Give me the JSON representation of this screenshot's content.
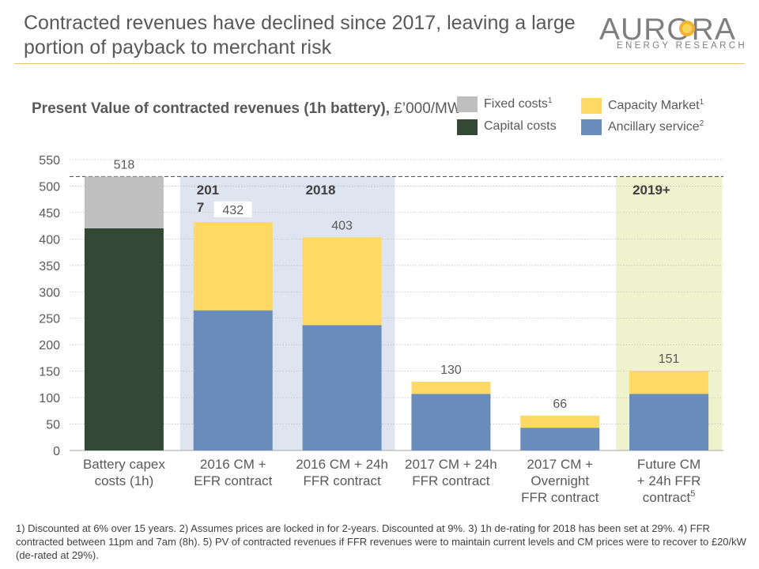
{
  "header": {
    "title": "Contracted revenues have declined since 2017, leaving a large portion of payback to merchant risk",
    "logo_main": "AURORA",
    "logo_sub": "ENERGY RESEARCH"
  },
  "chart_title": {
    "bold": "Present Value of contracted revenues (1h battery),",
    "normal": " £’000/MW"
  },
  "legend": [
    {
      "label": "Fixed costs",
      "sup": "1",
      "color": "#BFBFBF"
    },
    {
      "label": "Capital costs",
      "sup": "",
      "color": "#344935"
    },
    {
      "label": "Capacity Market",
      "sup": "1",
      "color": "#FFD966"
    },
    {
      "label": "Ancillary service",
      "sup": "2",
      "color": "#6A8CBB"
    }
  ],
  "colors": {
    "capital": "#344935",
    "fixed": "#BFBFBF",
    "cm": "#FFD966",
    "ancillary": "#6A8CBB",
    "band2017_2018": "#DEE5F0",
    "band2019": "#EEF3CE",
    "grid": "#BFBFBF",
    "text": "#595959"
  },
  "chart_data": {
    "type": "bar",
    "stacked": true,
    "ylim": [
      0,
      550
    ],
    "yticks": [
      0,
      50,
      100,
      150,
      200,
      250,
      300,
      350,
      400,
      450,
      500,
      550
    ],
    "grid": true,
    "categories": [
      [
        "Battery capex",
        "costs (1h)"
      ],
      [
        "2016 CM +",
        "EFR contract"
      ],
      [
        "2016 CM + 24h",
        "FFR contract"
      ],
      [
        "2017 CM + 24h",
        "FFR contract"
      ],
      [
        "2017 CM +",
        "Overnight",
        "FFR contract"
      ],
      [
        "Future CM",
        "+ 24h FFR",
        "contract"
      ]
    ],
    "category_sup": [
      "",
      "",
      "",
      "",
      "",
      "5"
    ],
    "series": [
      {
        "name": "Capital costs",
        "color_key": "capital",
        "values": [
          420,
          0,
          0,
          0,
          0,
          0
        ]
      },
      {
        "name": "Fixed costs",
        "color_key": "fixed",
        "values": [
          98,
          0,
          0,
          0,
          0,
          0
        ]
      },
      {
        "name": "Ancillary service",
        "color_key": "ancillary",
        "values": [
          0,
          265,
          237,
          107,
          43,
          107
        ]
      },
      {
        "name": "Capacity Market",
        "color_key": "cm",
        "values": [
          0,
          167,
          166,
          23,
          23,
          44
        ]
      }
    ],
    "totals": [
      518,
      432,
      403,
      130,
      66,
      151
    ],
    "reference_line": 518,
    "bands": [
      {
        "label": "201\n7",
        "from_index": 1,
        "to_index": 1,
        "color_key": "band2017_2018"
      },
      {
        "label": "2018",
        "from_index": 2,
        "to_index": 2,
        "color_key": "band2017_2018"
      },
      {
        "label": "2019+",
        "from_index": 5,
        "to_index": 5,
        "color_key": "band2019"
      }
    ]
  },
  "footnote": "1) Discounted at 6% over 15 years.  2) Assumes prices are locked in for 2-years. Discounted at 9%.  3) 1h de-rating for 2018 has been set at 29%.  4) FFR contracted between 11pm and 7am (8h).  5) PV of contracted revenues if FFR revenues were to maintain current levels and CM prices were to recover to £20/kW (de-rated at 29%)."
}
